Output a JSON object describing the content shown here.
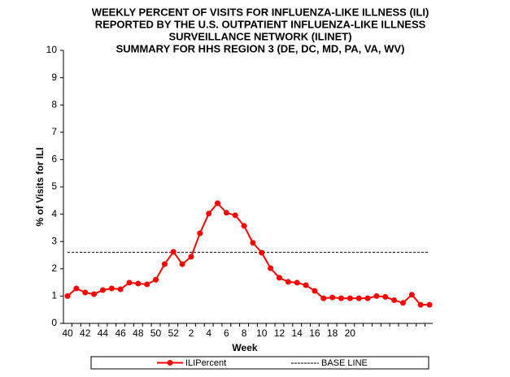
{
  "chart_data": {
    "type": "line",
    "title": [
      "WEEKLY PERCENT  OF VISITS FOR INFLUENZA-LIKE ILLNESS (ILI)",
      "REPORTED  BY THE U.S. OUTPATIENT  INFLUENZA-LIKE  ILLNESS",
      "SURVEILLANCE  NETWORK  (ILINET)",
      "SUMMARY FOR HHS REGION 3 (DE,  DC, MD, PA, VA, WV)"
    ],
    "x_label": "Week",
    "y_label": "% of Visits for ILI",
    "categories": [
      "40",
      null,
      "42",
      null,
      "44",
      null,
      "46",
      null,
      "48",
      null,
      "50",
      null,
      "52",
      null,
      "2",
      null,
      "4",
      null,
      "6",
      null,
      "8",
      null,
      "10",
      null,
      "12",
      null,
      "14",
      null,
      "16",
      null,
      "18",
      null,
      "20",
      null,
      null,
      null,
      null,
      null,
      null,
      null,
      null,
      null
    ],
    "series": [
      {
        "name": "ILIPercent",
        "color": "#ff0000",
        "values": [
          1.0,
          1.28,
          1.13,
          1.07,
          1.22,
          1.28,
          1.25,
          1.49,
          1.46,
          1.43,
          1.6,
          2.17,
          2.62,
          2.17,
          2.44,
          3.3,
          4.02,
          4.4,
          4.05,
          3.96,
          3.57,
          2.95,
          2.59,
          2.02,
          1.67,
          1.52,
          1.49,
          1.4,
          1.19,
          0.92,
          0.95,
          0.92,
          0.92,
          0.92,
          0.92,
          1.0,
          0.97,
          0.85,
          0.75,
          1.05,
          0.68,
          0.68
        ]
      }
    ],
    "baseline": {
      "name": "BASE LINE",
      "value": 2.6,
      "color": "#000000"
    },
    "ylim": [
      0,
      10
    ],
    "yticks": [
      0,
      1,
      2,
      3,
      4,
      5,
      6,
      7,
      8,
      9,
      10
    ]
  }
}
